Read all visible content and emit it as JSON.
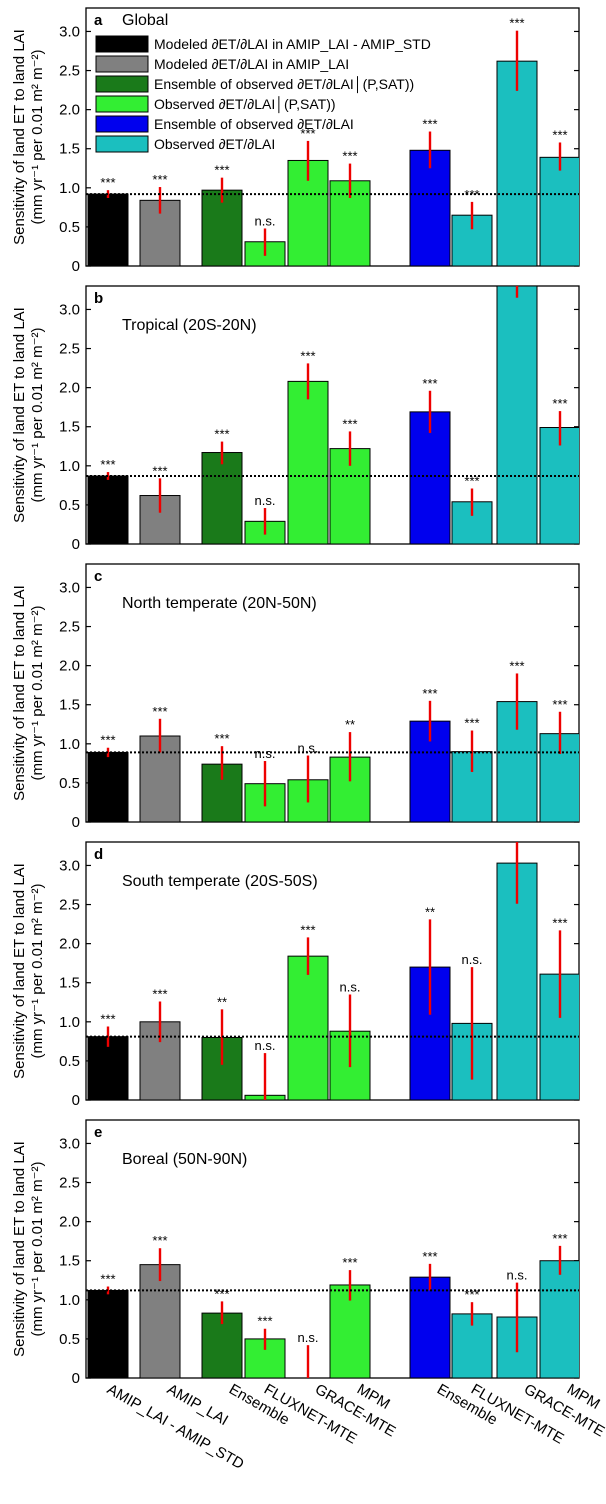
{
  "figure": {
    "ylabel_line1": "Sensitivity of land ET to land LAI",
    "ylabel_line2": "(mm yr⁻¹ per 0.01 m² m⁻²)"
  },
  "legend": [
    {
      "label": "Modeled ∂ET/∂LAI in AMIP_LAI - AMIP_STD",
      "color": "#000000"
    },
    {
      "label": "Modeled ∂ET/∂LAI in AMIP_LAI",
      "color": "#808080"
    },
    {
      "label": "Ensemble of observed ∂ET/∂LAI│(P,SAT))",
      "color": "#1a7a1a"
    },
    {
      "label": "Observed ∂ET/∂LAI│(P,SAT))",
      "color": "#33ee33"
    },
    {
      "label": "Ensemble of observed ∂ET/∂LAI",
      "color": "#0000ee"
    },
    {
      "label": "Observed ∂ET/∂LAI",
      "color": "#1bbfbf"
    }
  ],
  "colors": {
    "bars": [
      "#000000",
      "#808080",
      "#1a7a1a",
      "#33ee33",
      "#33ee33",
      "#33ee33",
      "#0000ee",
      "#1bbfbf",
      "#1bbfbf",
      "#1bbfbf"
    ],
    "error": "#ee0000",
    "refline": "#000000"
  },
  "categories": [
    "AMIP_LAI - AMIP_STD",
    "AMIP_LAI",
    "Ensemble",
    "FLUXNET-MTE",
    "GRACE-MTE",
    "MPM",
    "Ensemble",
    "FLUXNET-MTE",
    "GRACE-MTE",
    "MPM"
  ],
  "category_label_rows": [
    "low",
    "high",
    "high",
    "low",
    "high",
    "high",
    "high",
    "low",
    "high",
    "high"
  ],
  "chart_data": [
    {
      "type": "bar",
      "letter": "a",
      "title": "Global",
      "ylim": [
        0,
        3.3
      ],
      "yticks": [
        0,
        0.5,
        1,
        1.5,
        2,
        2.5,
        3
      ],
      "ytick_labels": [
        "0",
        "0.5",
        "1.0",
        "1.5",
        "2.0",
        "2.5",
        "3.0"
      ],
      "reference": 0.92,
      "values": [
        0.92,
        0.84,
        0.97,
        0.31,
        1.35,
        1.09,
        1.48,
        0.65,
        2.62,
        1.39
      ],
      "err_low": [
        0.87,
        0.67,
        0.81,
        0.13,
        1.09,
        0.87,
        1.25,
        0.47,
        2.24,
        1.22
      ],
      "err_high": [
        0.97,
        1.01,
        1.13,
        0.48,
        1.6,
        1.31,
        1.72,
        0.82,
        3.01,
        1.58
      ],
      "significance": [
        "***",
        "***",
        "***",
        "n.s.",
        "***",
        "***",
        "***",
        "***",
        "***",
        "***"
      ],
      "legend": true
    },
    {
      "type": "bar",
      "letter": "b",
      "title": "Tropical (20S-20N)",
      "ylim": [
        0,
        3.3
      ],
      "yticks": [
        0,
        0.5,
        1,
        1.5,
        2,
        2.5,
        3
      ],
      "ytick_labels": [
        "0",
        "0.5",
        "1.0",
        "1.5",
        "2.0",
        "2.5",
        "3.0"
      ],
      "reference": 0.87,
      "values": [
        0.87,
        0.62,
        1.17,
        0.29,
        2.08,
        1.22,
        1.69,
        0.54,
        3.4,
        1.49
      ],
      "err_low": [
        0.82,
        0.4,
        1.02,
        0.12,
        1.85,
        1.0,
        1.42,
        0.36,
        3.15,
        1.26
      ],
      "err_high": [
        0.92,
        0.84,
        1.31,
        0.46,
        2.31,
        1.44,
        1.96,
        0.71,
        3.6,
        1.7
      ],
      "significance": [
        "***",
        "***",
        "***",
        "n.s.",
        "***",
        "***",
        "***",
        "***",
        "",
        "***"
      ],
      "legend": false
    },
    {
      "type": "bar",
      "letter": "c",
      "title": "North temperate (20N-50N)",
      "ylim": [
        0,
        3.3
      ],
      "yticks": [
        0,
        0.5,
        1,
        1.5,
        2,
        2.5,
        3
      ],
      "ytick_labels": [
        "0",
        "0.5",
        "1.0",
        "1.5",
        "2.0",
        "2.5",
        "3.0"
      ],
      "reference": 0.89,
      "values": [
        0.89,
        1.1,
        0.74,
        0.49,
        0.54,
        0.83,
        1.29,
        0.9,
        1.54,
        1.13
      ],
      "err_low": [
        0.83,
        0.89,
        0.54,
        0.2,
        0.25,
        0.52,
        1.03,
        0.64,
        1.18,
        0.87
      ],
      "err_high": [
        0.95,
        1.32,
        0.97,
        0.78,
        0.85,
        1.15,
        1.55,
        1.17,
        1.9,
        1.41
      ],
      "significance": [
        "***",
        "***",
        "***",
        "n.s.",
        "n.s.",
        "**",
        "***",
        "***",
        "***",
        "***"
      ],
      "legend": false
    },
    {
      "type": "bar",
      "letter": "d",
      "title": "South temperate (20S-50S)",
      "ylim": [
        0,
        3.3
      ],
      "yticks": [
        0,
        0.5,
        1,
        1.5,
        2,
        2.5,
        3
      ],
      "ytick_labels": [
        "0",
        "0.5",
        "1.0",
        "1.5",
        "2.0",
        "2.5",
        "3.0"
      ],
      "reference": 0.81,
      "values": [
        0.81,
        1.0,
        0.8,
        0.06,
        1.84,
        0.88,
        1.7,
        0.98,
        3.03,
        1.61
      ],
      "err_low": [
        0.68,
        0.74,
        0.45,
        0.0,
        1.6,
        0.42,
        1.09,
        0.26,
        2.51,
        1.05
      ],
      "err_high": [
        0.94,
        1.26,
        1.16,
        0.6,
        2.08,
        1.35,
        2.31,
        1.7,
        3.3,
        2.17
      ],
      "significance": [
        "***",
        "***",
        "**",
        "n.s.",
        "***",
        "n.s.",
        "**",
        "n.s.",
        "",
        "***"
      ],
      "legend": false
    },
    {
      "type": "bar",
      "letter": "e",
      "title": "Boreal (50N-90N)",
      "ylim": [
        0,
        3.3
      ],
      "yticks": [
        0,
        0.5,
        1,
        1.5,
        2,
        2.5,
        3
      ],
      "ytick_labels": [
        "0",
        "0.5",
        "1.0",
        "1.5",
        "2.0",
        "2.5",
        "3.0"
      ],
      "reference": 1.12,
      "values": [
        1.12,
        1.45,
        0.83,
        0.5,
        0.0,
        1.19,
        1.29,
        0.82,
        0.78,
        1.5
      ],
      "err_low": [
        1.07,
        1.24,
        0.69,
        0.36,
        0.0,
        0.99,
        1.12,
        0.67,
        0.33,
        1.32
      ],
      "err_high": [
        1.17,
        1.66,
        0.98,
        0.63,
        0.42,
        1.38,
        1.46,
        0.97,
        1.22,
        1.69
      ],
      "significance": [
        "***",
        "***",
        "***",
        "***",
        "n.s.",
        "***",
        "***",
        "***",
        "n.s.",
        "***"
      ],
      "legend": false
    }
  ]
}
